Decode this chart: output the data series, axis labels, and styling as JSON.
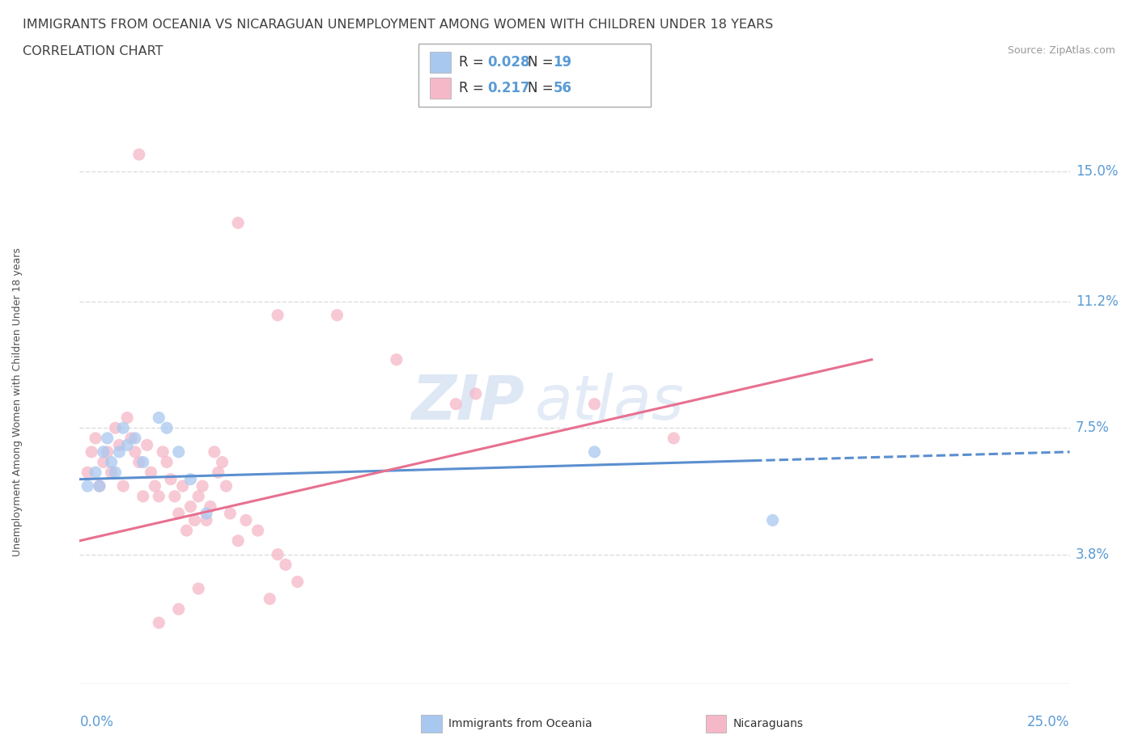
{
  "title_line1": "IMMIGRANTS FROM OCEANIA VS NICARAGUAN UNEMPLOYMENT AMONG WOMEN WITH CHILDREN UNDER 18 YEARS",
  "title_line2": "CORRELATION CHART",
  "source_text": "Source: ZipAtlas.com",
  "ylabel": "Unemployment Among Women with Children Under 18 years",
  "xmin": 0.0,
  "xmax": 0.25,
  "ymin": 0.0,
  "ymax": 0.165,
  "yticks": [
    0.038,
    0.075,
    0.112,
    0.15
  ],
  "ytick_labels": [
    "3.8%",
    "7.5%",
    "11.2%",
    "15.0%"
  ],
  "xtick_labels": [
    "0.0%",
    "25.0%"
  ],
  "legend_r1_prefix": "R = ",
  "legend_r1_r": "0.028",
  "legend_r1_suffix": "  N = ",
  "legend_r1_n": "19",
  "legend_r2_prefix": "R =  ",
  "legend_r2_r": "0.217",
  "legend_r2_suffix": "  N = ",
  "legend_r2_n": "56",
  "color_blue": "#A8C8F0",
  "color_pink": "#F5B8C8",
  "color_blue_line": "#5B8FD0",
  "color_pink_line": "#E87090",
  "color_blue_dark": "#4472C4",
  "color_pink_dark": "#E06080",
  "watermark_zip": "ZIP",
  "watermark_atlas": "atlas",
  "scatter_blue": [
    [
      0.002,
      0.058
    ],
    [
      0.004,
      0.062
    ],
    [
      0.005,
      0.058
    ],
    [
      0.006,
      0.068
    ],
    [
      0.007,
      0.072
    ],
    [
      0.008,
      0.065
    ],
    [
      0.009,
      0.062
    ],
    [
      0.01,
      0.068
    ],
    [
      0.011,
      0.075
    ],
    [
      0.012,
      0.07
    ],
    [
      0.014,
      0.072
    ],
    [
      0.016,
      0.065
    ],
    [
      0.02,
      0.078
    ],
    [
      0.022,
      0.075
    ],
    [
      0.025,
      0.068
    ],
    [
      0.028,
      0.06
    ],
    [
      0.032,
      0.05
    ],
    [
      0.13,
      0.068
    ],
    [
      0.175,
      0.048
    ]
  ],
  "scatter_pink": [
    [
      0.002,
      0.062
    ],
    [
      0.003,
      0.068
    ],
    [
      0.004,
      0.072
    ],
    [
      0.005,
      0.058
    ],
    [
      0.006,
      0.065
    ],
    [
      0.007,
      0.068
    ],
    [
      0.008,
      0.062
    ],
    [
      0.009,
      0.075
    ],
    [
      0.01,
      0.07
    ],
    [
      0.011,
      0.058
    ],
    [
      0.012,
      0.078
    ],
    [
      0.013,
      0.072
    ],
    [
      0.014,
      0.068
    ],
    [
      0.015,
      0.065
    ],
    [
      0.016,
      0.055
    ],
    [
      0.017,
      0.07
    ],
    [
      0.018,
      0.062
    ],
    [
      0.019,
      0.058
    ],
    [
      0.02,
      0.055
    ],
    [
      0.021,
      0.068
    ],
    [
      0.022,
      0.065
    ],
    [
      0.023,
      0.06
    ],
    [
      0.024,
      0.055
    ],
    [
      0.025,
      0.05
    ],
    [
      0.026,
      0.058
    ],
    [
      0.027,
      0.045
    ],
    [
      0.028,
      0.052
    ],
    [
      0.029,
      0.048
    ],
    [
      0.03,
      0.055
    ],
    [
      0.031,
      0.058
    ],
    [
      0.032,
      0.048
    ],
    [
      0.033,
      0.052
    ],
    [
      0.034,
      0.068
    ],
    [
      0.035,
      0.062
    ],
    [
      0.036,
      0.065
    ],
    [
      0.037,
      0.058
    ],
    [
      0.038,
      0.05
    ],
    [
      0.04,
      0.042
    ],
    [
      0.042,
      0.048
    ],
    [
      0.045,
      0.045
    ],
    [
      0.05,
      0.038
    ],
    [
      0.052,
      0.035
    ],
    [
      0.055,
      0.03
    ],
    [
      0.015,
      0.155
    ],
    [
      0.04,
      0.135
    ],
    [
      0.05,
      0.108
    ],
    [
      0.065,
      0.108
    ],
    [
      0.08,
      0.095
    ],
    [
      0.095,
      0.082
    ],
    [
      0.1,
      0.085
    ],
    [
      0.13,
      0.082
    ],
    [
      0.15,
      0.072
    ],
    [
      0.048,
      0.025
    ],
    [
      0.03,
      0.028
    ],
    [
      0.025,
      0.022
    ],
    [
      0.02,
      0.018
    ]
  ],
  "blue_trend": [
    0.0,
    0.25,
    0.06,
    0.068
  ],
  "blue_trend_solid_end": 0.17,
  "pink_trend": [
    0.0,
    0.2,
    0.042,
    0.095
  ],
  "grid_color": "#DDDDDD",
  "tick_color": "#5B9BD5",
  "title_color": "#404040",
  "source_color": "#999999",
  "title_fontsize": 11.5,
  "subtitle_fontsize": 11.5,
  "tick_fontsize": 12,
  "axis_label_fontsize": 9
}
